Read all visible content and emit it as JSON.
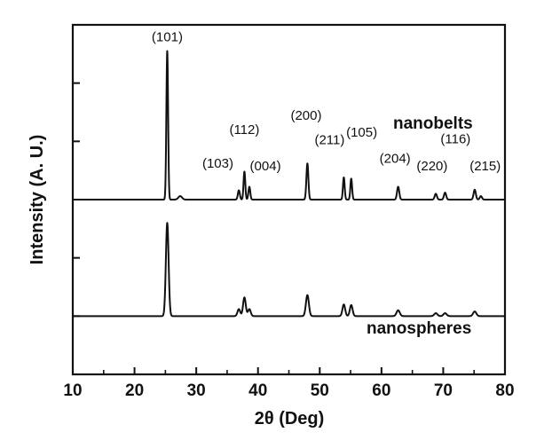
{
  "chart_data": {
    "type": "line",
    "title": "",
    "xlabel": "2θ (Deg)",
    "ylabel": "Intensity (A. U.)",
    "xlim": [
      10,
      80
    ],
    "ylim": [
      0,
      6
    ],
    "x_ticks": [
      10,
      20,
      30,
      40,
      50,
      60,
      70,
      80
    ],
    "x_tick_labels": [
      "10",
      "20",
      "30",
      "40",
      "50",
      "60",
      "70",
      "80"
    ],
    "grid": false,
    "series": [
      {
        "name": "nanobelts",
        "baseline": 3.0,
        "peaks": [
          {
            "x": 25.3,
            "h": 2.55,
            "w": 0.14
          },
          {
            "x": 27.4,
            "h": 0.06,
            "w": 0.3
          },
          {
            "x": 36.9,
            "h": 0.16,
            "w": 0.16
          },
          {
            "x": 37.8,
            "h": 0.48,
            "w": 0.14
          },
          {
            "x": 38.6,
            "h": 0.22,
            "w": 0.15
          },
          {
            "x": 48.0,
            "h": 0.62,
            "w": 0.16
          },
          {
            "x": 53.9,
            "h": 0.38,
            "w": 0.14
          },
          {
            "x": 55.1,
            "h": 0.36,
            "w": 0.14
          },
          {
            "x": 62.7,
            "h": 0.22,
            "w": 0.18
          },
          {
            "x": 68.8,
            "h": 0.1,
            "w": 0.18
          },
          {
            "x": 70.3,
            "h": 0.12,
            "w": 0.18
          },
          {
            "x": 75.1,
            "h": 0.17,
            "w": 0.18
          },
          {
            "x": 76.1,
            "h": 0.06,
            "w": 0.18
          }
        ]
      },
      {
        "name": "nanospheres",
        "baseline": 1.0,
        "peaks": [
          {
            "x": 25.3,
            "h": 1.6,
            "w": 0.22
          },
          {
            "x": 36.9,
            "h": 0.12,
            "w": 0.22
          },
          {
            "x": 37.8,
            "h": 0.32,
            "w": 0.22
          },
          {
            "x": 38.6,
            "h": 0.12,
            "w": 0.22
          },
          {
            "x": 48.0,
            "h": 0.36,
            "w": 0.24
          },
          {
            "x": 53.9,
            "h": 0.2,
            "w": 0.22
          },
          {
            "x": 55.1,
            "h": 0.19,
            "w": 0.22
          },
          {
            "x": 62.7,
            "h": 0.1,
            "w": 0.26
          },
          {
            "x": 68.8,
            "h": 0.05,
            "w": 0.26
          },
          {
            "x": 70.3,
            "h": 0.05,
            "w": 0.26
          },
          {
            "x": 75.1,
            "h": 0.08,
            "w": 0.26
          }
        ]
      }
    ],
    "series_labels": [
      "nanobelts",
      "nanospheres"
    ],
    "peak_labels": [
      {
        "text": "(101)",
        "x": 25.3,
        "y": 5.72
      },
      {
        "text": "(103)",
        "x": 33.5,
        "y": 3.55
      },
      {
        "text": "(112)",
        "x": 37.8,
        "y": 4.13
      },
      {
        "text": "(004)",
        "x": 41.2,
        "y": 3.5
      },
      {
        "text": "(200)",
        "x": 47.8,
        "y": 4.37
      },
      {
        "text": "(211)",
        "x": 51.6,
        "y": 3.95
      },
      {
        "text": "(105)",
        "x": 56.8,
        "y": 4.08
      },
      {
        "text": "(204)",
        "x": 62.2,
        "y": 3.63
      },
      {
        "text": "(220)",
        "x": 68.2,
        "y": 3.5
      },
      {
        "text": "(116)",
        "x": 72.0,
        "y": 3.97
      },
      {
        "text": "(215)",
        "x": 76.8,
        "y": 3.5
      }
    ]
  }
}
